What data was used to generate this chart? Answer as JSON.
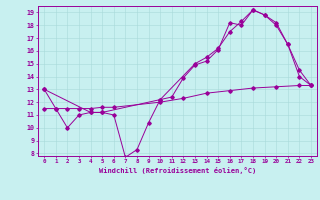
{
  "xlabel": "Windchill (Refroidissement éolien,°C)",
  "bg_color": "#c8f0f0",
  "line_color": "#990099",
  "xlim": [
    -0.5,
    23.5
  ],
  "ylim": [
    7.8,
    19.5
  ],
  "xticks": [
    0,
    1,
    2,
    3,
    4,
    5,
    6,
    7,
    8,
    9,
    10,
    11,
    12,
    13,
    14,
    15,
    16,
    17,
    18,
    19,
    20,
    21,
    22,
    23
  ],
  "yticks": [
    8,
    9,
    10,
    11,
    12,
    13,
    14,
    15,
    16,
    17,
    18,
    19
  ],
  "line1_x": [
    0,
    1,
    2,
    3,
    4,
    5,
    6,
    7,
    8,
    9,
    10,
    11,
    12,
    13,
    14,
    15,
    16,
    17,
    18,
    19,
    20,
    21,
    22,
    23
  ],
  "line1_y": [
    13.0,
    11.5,
    10.0,
    11.0,
    11.2,
    11.2,
    11.0,
    7.7,
    8.3,
    10.4,
    12.2,
    12.4,
    13.9,
    14.9,
    15.2,
    16.1,
    18.2,
    18.0,
    19.2,
    18.8,
    18.2,
    16.5,
    14.5,
    13.3
  ],
  "line2_x": [
    0,
    4,
    5,
    10,
    13,
    14,
    15,
    16,
    17,
    18,
    19,
    20,
    21,
    22,
    23
  ],
  "line2_y": [
    13.0,
    11.2,
    11.2,
    12.2,
    15.0,
    15.5,
    16.2,
    17.5,
    18.3,
    19.2,
    18.8,
    18.0,
    16.5,
    14.0,
    13.3
  ],
  "line3_x": [
    0,
    1,
    2,
    3,
    4,
    5,
    6,
    10,
    12,
    14,
    16,
    18,
    20,
    22,
    23
  ],
  "line3_y": [
    11.5,
    11.5,
    11.5,
    11.5,
    11.5,
    11.6,
    11.6,
    12.0,
    12.3,
    12.7,
    12.9,
    13.1,
    13.2,
    13.3,
    13.3
  ]
}
